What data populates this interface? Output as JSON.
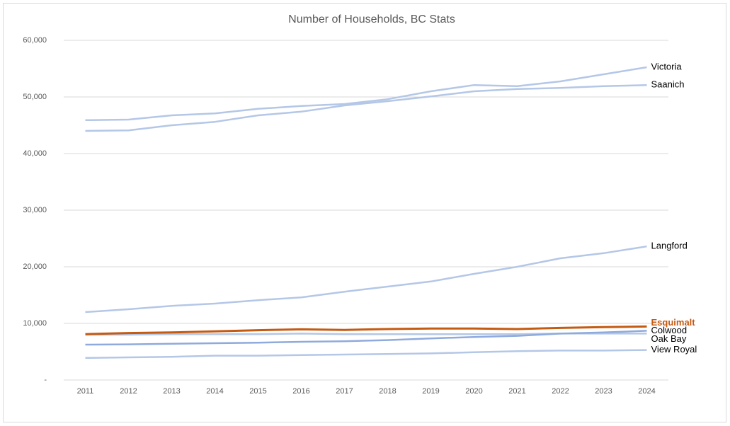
{
  "chart_data": {
    "type": "line",
    "title": "Number of Households, BC Stats",
    "categories": [
      "2011",
      "2012",
      "2013",
      "2014",
      "2015",
      "2016",
      "2017",
      "2018",
      "2019",
      "2020",
      "2021",
      "2022",
      "2023",
      "2024"
    ],
    "series": [
      {
        "name": "Victoria",
        "color": "#b4c7e7",
        "values": [
          45900,
          46000,
          46750,
          47100,
          47900,
          48400,
          48750,
          49600,
          51000,
          52100,
          51900,
          52750,
          54000,
          55250
        ]
      },
      {
        "name": "Saanich",
        "color": "#b4c7e7",
        "values": [
          44000,
          44100,
          45000,
          45600,
          46750,
          47400,
          48500,
          49250,
          50100,
          51000,
          51400,
          51600,
          51900,
          52100
        ]
      },
      {
        "name": "Langford",
        "color": "#b4c7e7",
        "values": [
          12000,
          12500,
          13100,
          13500,
          14100,
          14600,
          15600,
          16500,
          17400,
          18750,
          20000,
          21500,
          22400,
          23600
        ]
      },
      {
        "name": "Esquimalt",
        "color": "#c55a11",
        "values": [
          8100,
          8300,
          8400,
          8600,
          8800,
          8950,
          8850,
          9000,
          9100,
          9100,
          9000,
          9200,
          9350,
          9450
        ]
      },
      {
        "name": "Colwood",
        "color": "#8faadc",
        "values": [
          6250,
          6300,
          6400,
          6500,
          6600,
          6750,
          6850,
          7050,
          7350,
          7600,
          7800,
          8200,
          8400,
          8700
        ]
      },
      {
        "name": "Oak Bay",
        "color": "#b4c7e7",
        "values": [
          8000,
          8000,
          8100,
          8100,
          8100,
          8200,
          8100,
          8100,
          8100,
          8100,
          8100,
          8200,
          8200,
          8200
        ]
      },
      {
        "name": "View Royal",
        "color": "#b4c7e7",
        "values": [
          3900,
          4000,
          4100,
          4300,
          4300,
          4400,
          4500,
          4600,
          4700,
          4900,
          5100,
          5200,
          5200,
          5300
        ]
      }
    ],
    "ylim": [
      0,
      60000
    ],
    "yticks": [
      {
        "value": 0,
        "label": "-"
      },
      {
        "value": 10000,
        "label": "10,000"
      },
      {
        "value": 20000,
        "label": "20,000"
      },
      {
        "value": 30000,
        "label": "30,000"
      },
      {
        "value": 40000,
        "label": "40,000"
      },
      {
        "value": 50000,
        "label": "50,000"
      },
      {
        "value": 60000,
        "label": "60,000"
      }
    ],
    "grid": true
  }
}
